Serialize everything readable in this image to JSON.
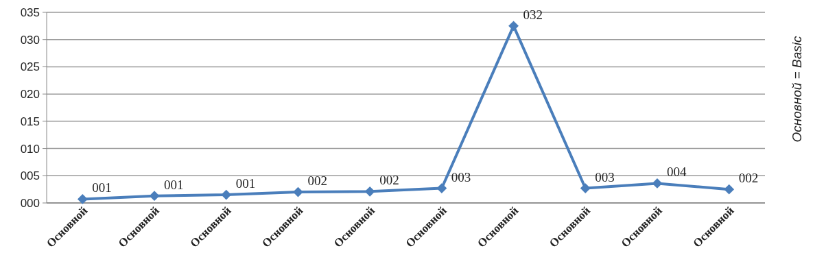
{
  "chart_data": {
    "type": "line",
    "categories": [
      "Основной",
      "Основной",
      "Основной",
      "Основной",
      "Основной",
      "Основной",
      "Основной",
      "Основной",
      "Основной",
      "Основной"
    ],
    "series": [
      {
        "color": "#4a7ebb",
        "values": [
          0.7,
          1.3,
          1.5,
          2.0,
          2.1,
          2.7,
          32.5,
          2.7,
          3.6,
          2.5
        ],
        "value_labels": [
          "001",
          "001",
          "001",
          "002",
          "002",
          "003",
          "032",
          "003",
          "004",
          "002"
        ]
      }
    ],
    "ylim": [
      0,
      35
    ],
    "yticks": [
      {
        "value": 0,
        "label": "000"
      },
      {
        "value": 5,
        "label": "005"
      },
      {
        "value": 10,
        "label": "010"
      },
      {
        "value": 15,
        "label": "015"
      },
      {
        "value": 20,
        "label": "020"
      },
      {
        "value": 25,
        "label": "025"
      },
      {
        "value": 30,
        "label": "030"
      },
      {
        "value": 35,
        "label": "035"
      }
    ],
    "grid": "y",
    "marker": "diamond",
    "line_style": "solid",
    "annotations": [
      "Основной = Basic"
    ]
  }
}
